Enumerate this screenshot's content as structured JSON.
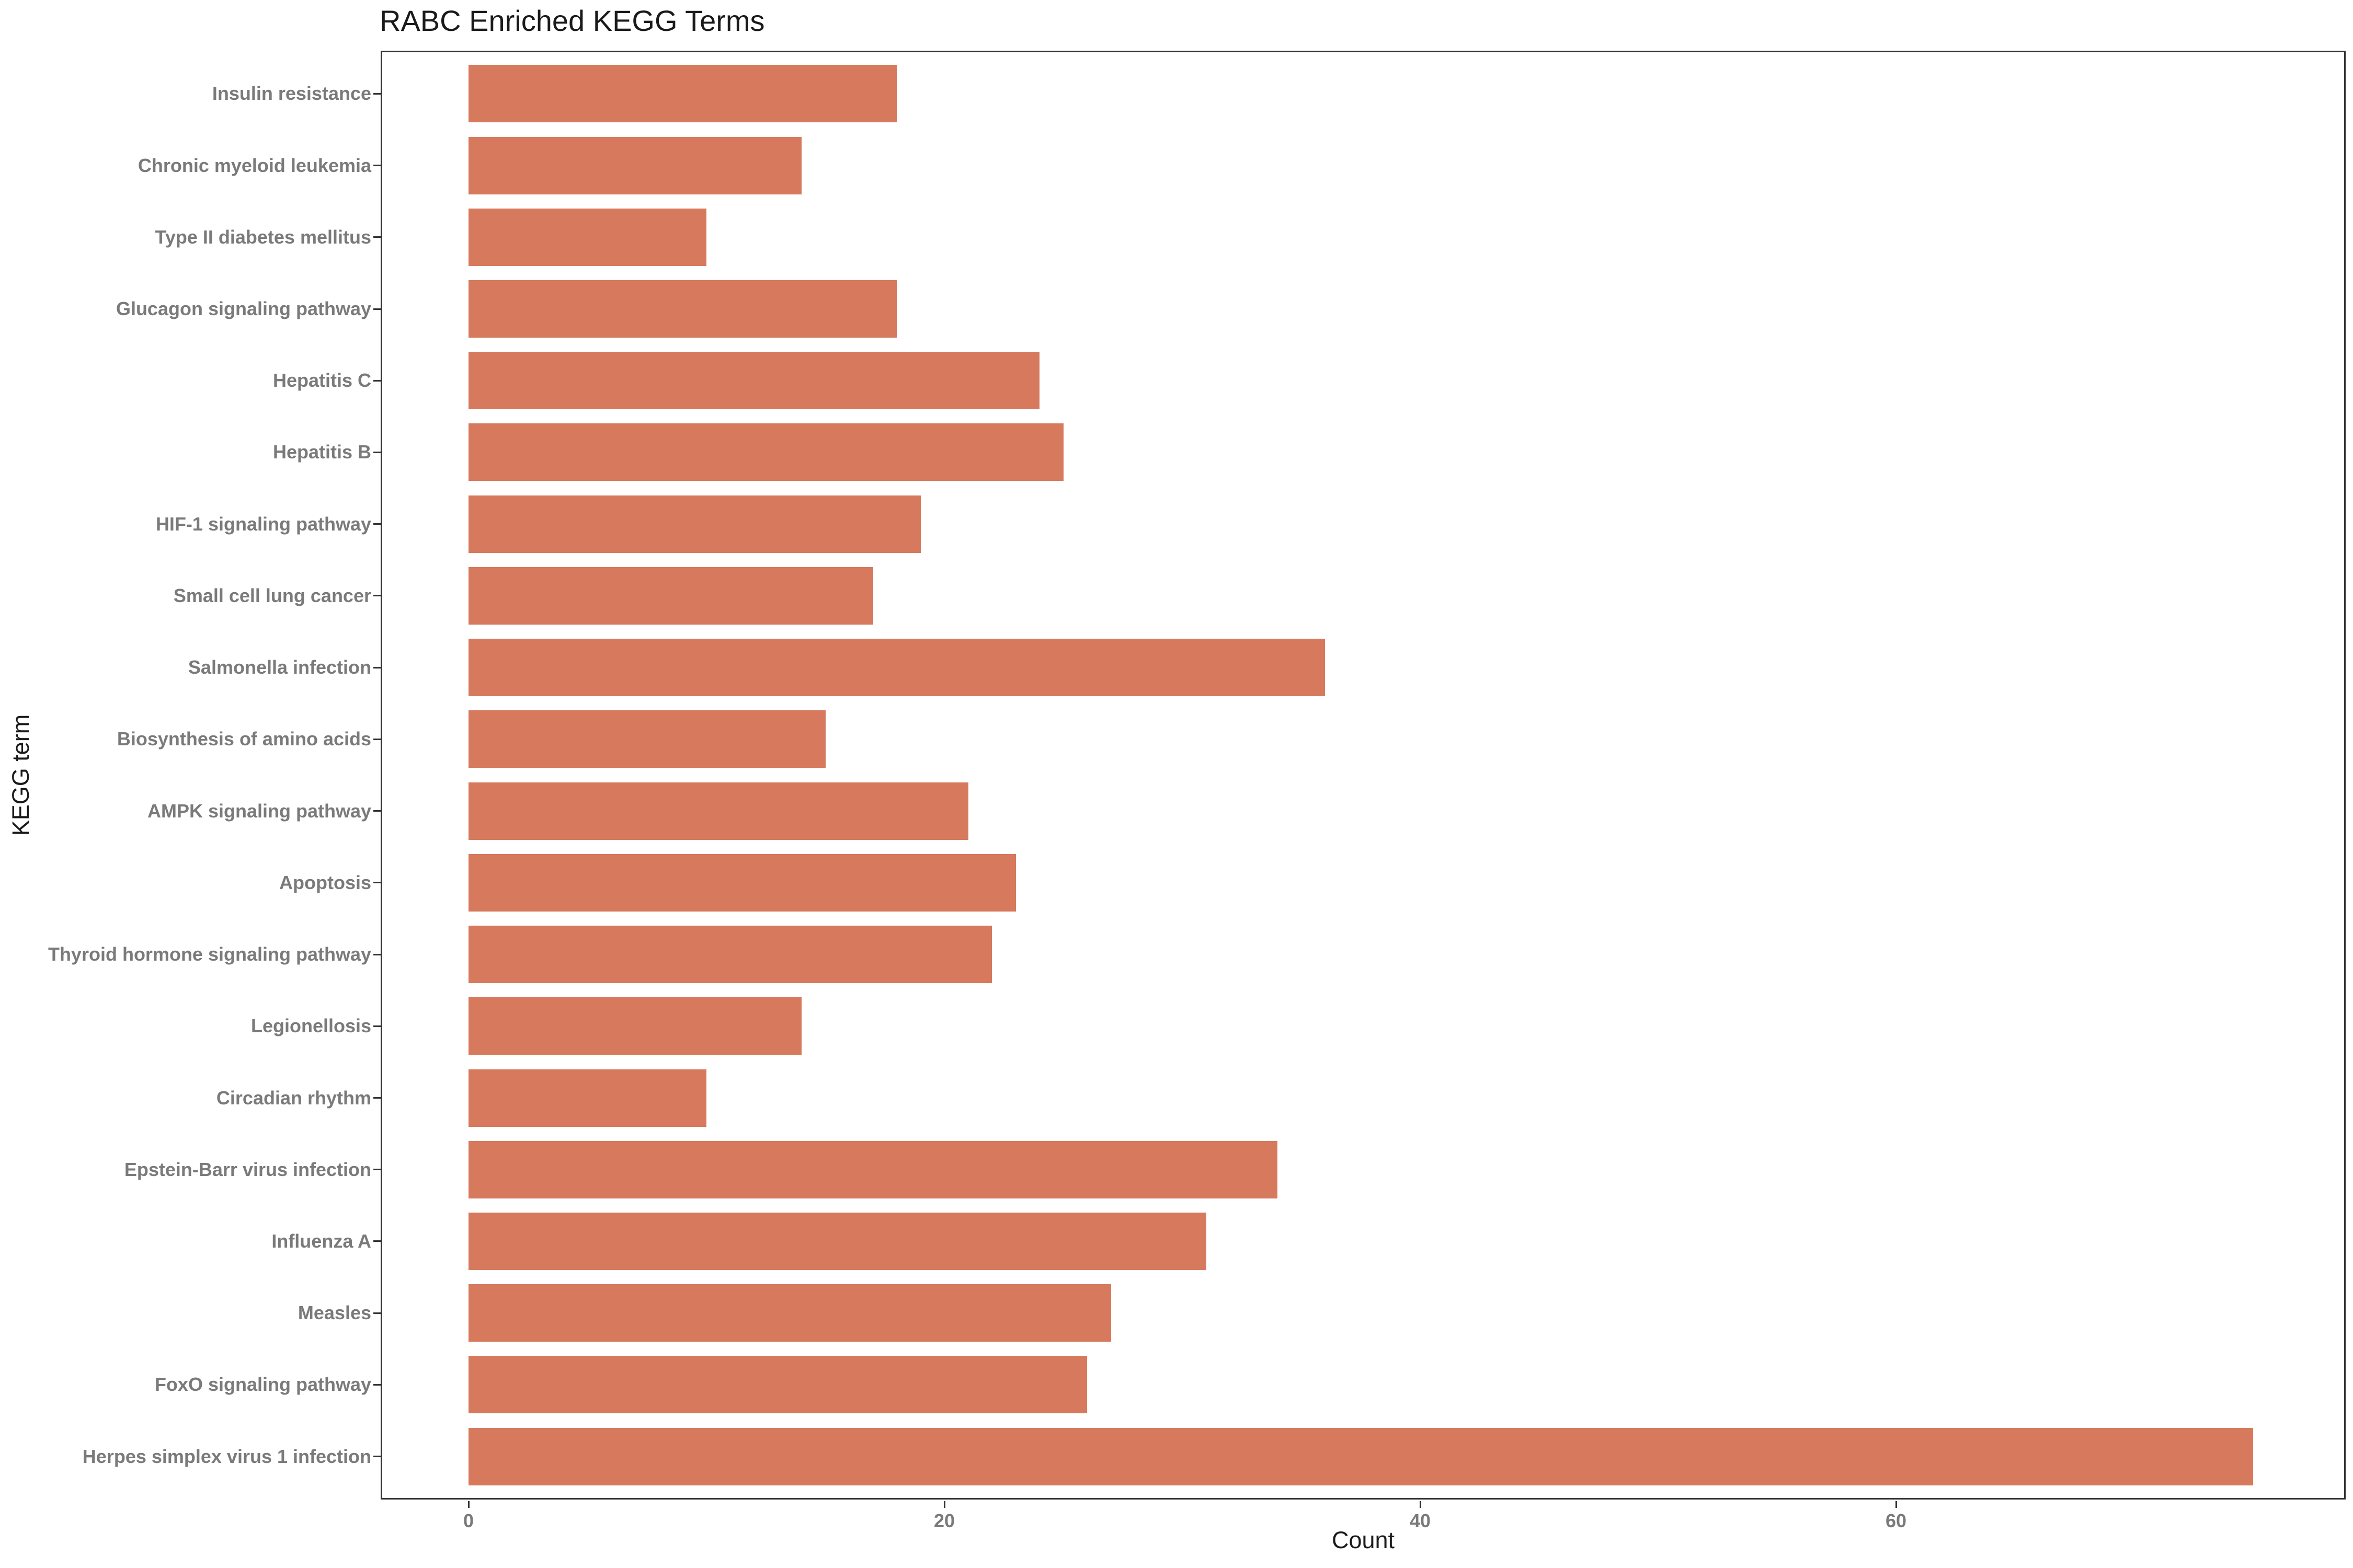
{
  "title": "RABC Enriched KEGG Terms",
  "chart_data": {
    "type": "bar",
    "orientation": "horizontal",
    "title": "RABC Enriched KEGG Terms",
    "xlabel": "Count",
    "ylabel": "KEGG term",
    "categories": [
      "Insulin resistance",
      "Chronic myeloid leukemia",
      "Type II diabetes mellitus",
      "Glucagon signaling pathway",
      "Hepatitis C",
      "Hepatitis B",
      "HIF-1 signaling pathway",
      "Small cell lung cancer",
      "Salmonella infection",
      "Biosynthesis of amino acids",
      "AMPK signaling pathway",
      "Apoptosis",
      "Thyroid hormone signaling pathway",
      "Legionellosis",
      "Circadian rhythm",
      "Epstein-Barr virus infection",
      "Influenza A",
      "Measles",
      "FoxO signaling pathway",
      "Herpes simplex virus 1 infection"
    ],
    "values": [
      18,
      14,
      10,
      18,
      24,
      25,
      19,
      17,
      36,
      15,
      21,
      23,
      22,
      14,
      10,
      34,
      31,
      27,
      26,
      75
    ],
    "x_ticks": [
      0,
      20,
      40,
      60
    ],
    "xlim": [
      0,
      75
    ],
    "grid": false,
    "legend": false,
    "bar_color": "#D6795C",
    "axis_color": "#333333",
    "tick_label_color": "#7A7A7A",
    "text_color": "#1A1A1A"
  }
}
